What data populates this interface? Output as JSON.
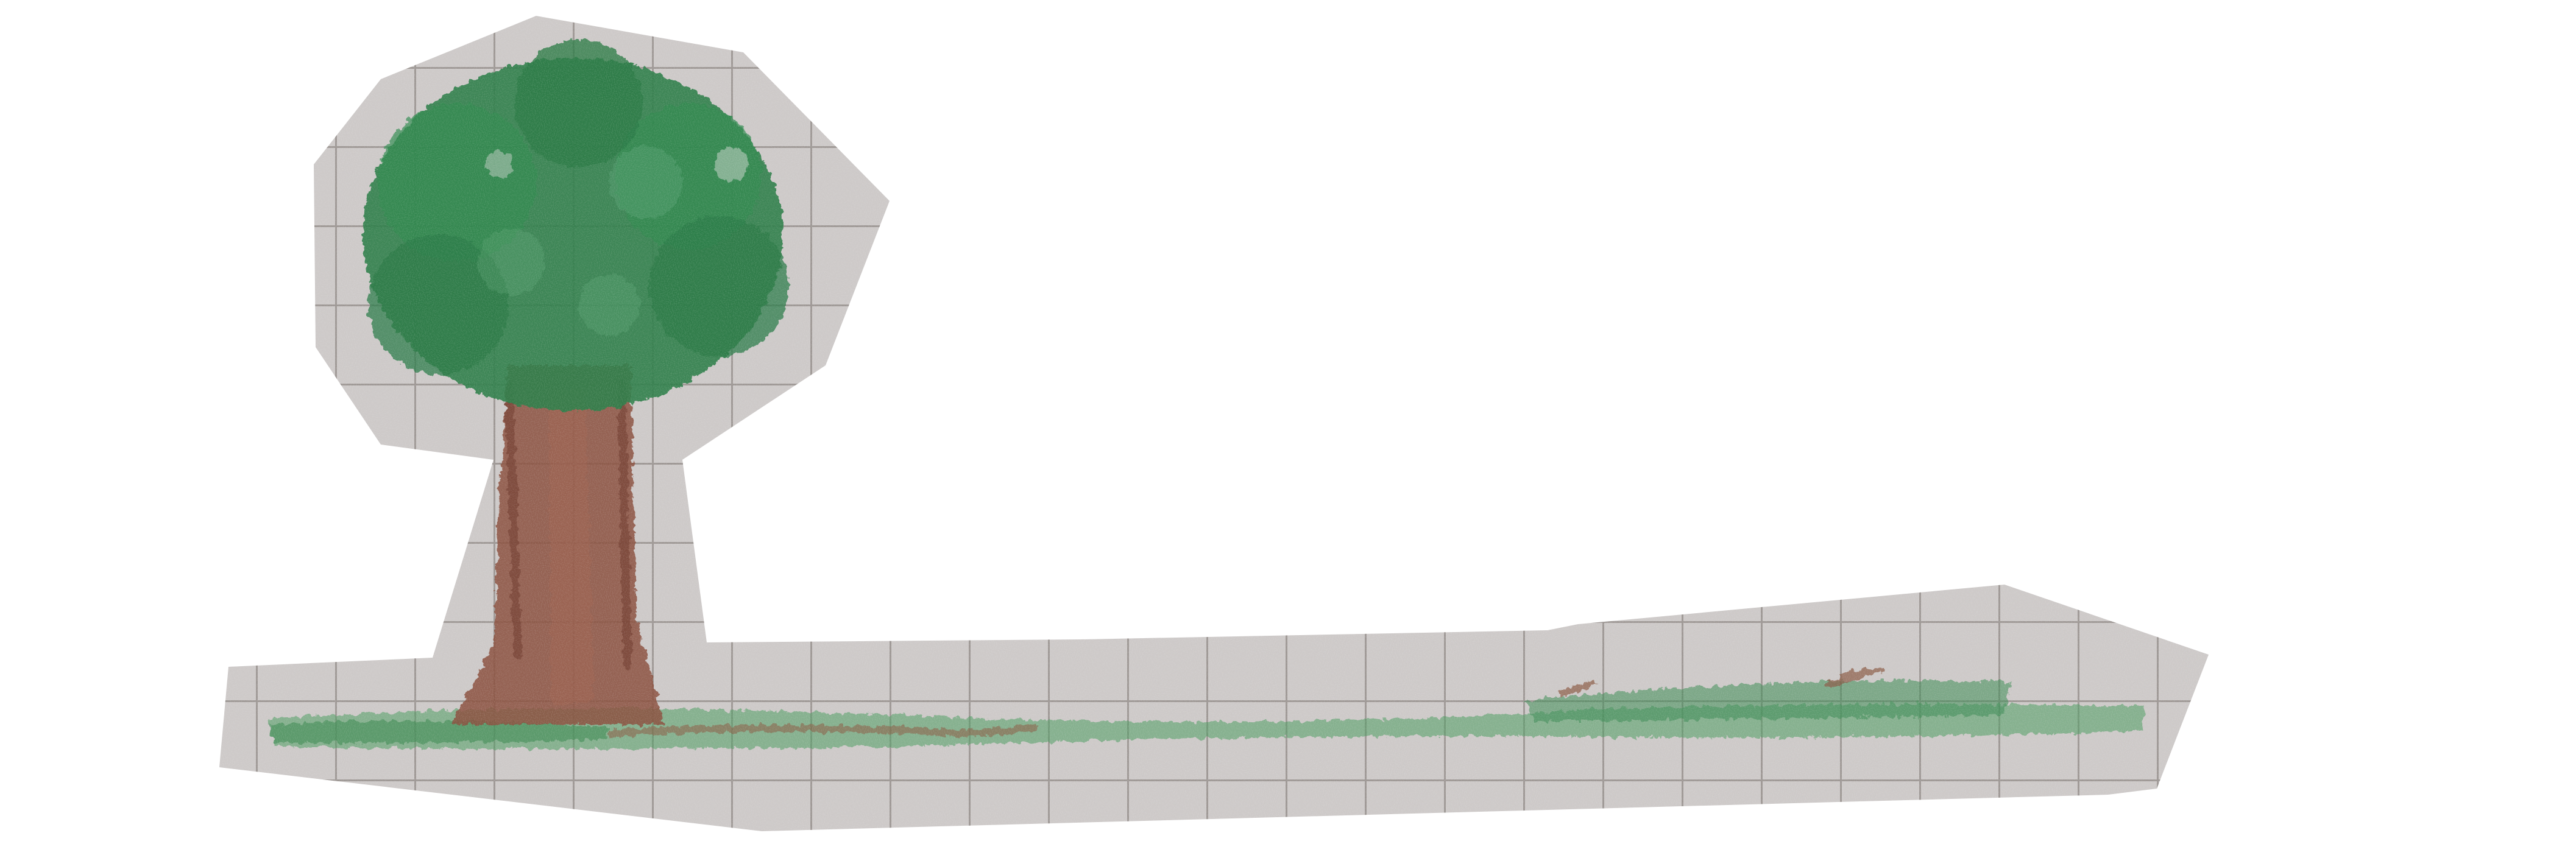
{
  "scene": {
    "description_free": true,
    "paper_color": "#cdc9c8",
    "grid_line_color": "#8f8884",
    "canopy_color": "#2e7d48",
    "canopy_dark_color": "#1f6b3a",
    "trunk_color": "#8a4f3d",
    "trunk_dark_color": "#6f3b2e",
    "grass_color": "#4a9a5e",
    "grass_brown_color": "#8a5a44",
    "background_color": "#ffffff"
  }
}
